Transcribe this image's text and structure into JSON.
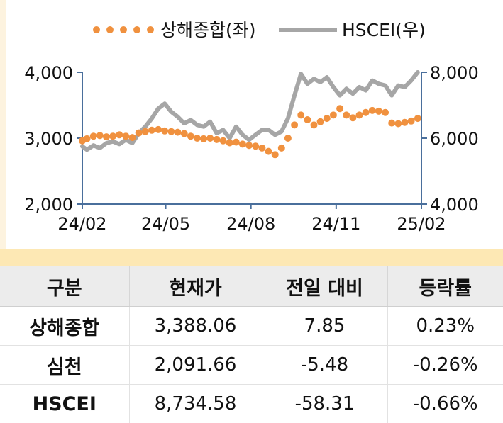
{
  "chart_data": {
    "type": "line",
    "x_tick_labels": [
      "24/02",
      "24/05",
      "24/08",
      "24/11",
      "25/02"
    ],
    "y_left": {
      "ticks": [
        2000,
        3000,
        4000
      ],
      "tick_labels": [
        "2,000",
        "3,000",
        "4,000"
      ],
      "ylim": [
        2000,
        4000
      ]
    },
    "y_right": {
      "ticks": [
        4000,
        6000,
        8000
      ],
      "tick_labels": [
        "4,000",
        "6,000",
        "8,000"
      ],
      "ylim": [
        4000,
        8000
      ]
    },
    "series": [
      {
        "name": "상해종합(좌)",
        "style": "dotted",
        "axis": "left",
        "color": "#f0913f",
        "x": [
          "2024-02-01",
          "2024-02-06",
          "2024-02-13",
          "2024-02-20",
          "2024-02-27",
          "2024-03-05",
          "2024-03-12",
          "2024-03-19",
          "2024-03-26",
          "2024-04-02",
          "2024-04-09",
          "2024-04-16",
          "2024-04-23",
          "2024-04-30",
          "2024-05-07",
          "2024-05-14",
          "2024-05-21",
          "2024-05-28",
          "2024-06-04",
          "2024-06-11",
          "2024-06-18",
          "2024-06-25",
          "2024-07-02",
          "2024-07-09",
          "2024-07-16",
          "2024-07-23",
          "2024-07-30",
          "2024-08-06",
          "2024-08-13",
          "2024-08-20",
          "2024-08-27",
          "2024-09-03",
          "2024-09-10",
          "2024-09-17",
          "2024-09-24",
          "2024-10-01",
          "2024-10-08",
          "2024-10-15",
          "2024-10-22",
          "2024-10-29",
          "2024-11-05",
          "2024-11-12",
          "2024-11-19",
          "2024-11-26",
          "2024-12-03",
          "2024-12-10",
          "2024-12-17",
          "2024-12-24",
          "2024-12-31",
          "2025-01-07",
          "2025-01-14",
          "2025-01-21",
          "2025-01-28"
        ],
        "values": [
          2960,
          2990,
          3030,
          3040,
          3020,
          3030,
          3050,
          3030,
          3010,
          3080,
          3100,
          3120,
          3130,
          3110,
          3100,
          3090,
          3070,
          3030,
          3000,
          2990,
          3000,
          2980,
          2960,
          2930,
          2940,
          2910,
          2890,
          2880,
          2850,
          2800,
          2750,
          2850,
          3000,
          3200,
          3350,
          3280,
          3200,
          3250,
          3300,
          3350,
          3450,
          3350,
          3310,
          3350,
          3390,
          3420,
          3410,
          3390,
          3230,
          3220,
          3240,
          3260,
          3300
        ]
      },
      {
        "name": "HSCEI(우)",
        "style": "solid",
        "axis": "right",
        "color": "#a6a6a6",
        "x": [
          "2024-02-01",
          "2024-02-06",
          "2024-02-13",
          "2024-02-20",
          "2024-02-27",
          "2024-03-05",
          "2024-03-12",
          "2024-03-19",
          "2024-03-26",
          "2024-04-02",
          "2024-04-09",
          "2024-04-16",
          "2024-04-23",
          "2024-04-30",
          "2024-05-07",
          "2024-05-14",
          "2024-05-21",
          "2024-05-28",
          "2024-06-04",
          "2024-06-11",
          "2024-06-18",
          "2024-06-25",
          "2024-07-02",
          "2024-07-09",
          "2024-07-16",
          "2024-07-23",
          "2024-07-30",
          "2024-08-06",
          "2024-08-13",
          "2024-08-20",
          "2024-08-27",
          "2024-09-03",
          "2024-09-10",
          "2024-09-17",
          "2024-09-24",
          "2024-10-01",
          "2024-10-08",
          "2024-10-15",
          "2024-10-22",
          "2024-10-29",
          "2024-11-05",
          "2024-11-12",
          "2024-11-19",
          "2024-11-26",
          "2024-12-03",
          "2024-12-10",
          "2024-12-17",
          "2024-12-24",
          "2024-12-31",
          "2025-01-07",
          "2025-01-14",
          "2025-01-21",
          "2025-01-28"
        ],
        "values": [
          5750,
          5650,
          5780,
          5700,
          5850,
          5900,
          5820,
          5950,
          5850,
          6150,
          6350,
          6600,
          6900,
          7050,
          6800,
          6650,
          6450,
          6550,
          6400,
          6350,
          6500,
          6150,
          6250,
          6000,
          6350,
          6100,
          5950,
          6100,
          6250,
          6250,
          6100,
          6200,
          6600,
          7300,
          7950,
          7650,
          7800,
          7700,
          7850,
          7550,
          7300,
          7500,
          7350,
          7550,
          7450,
          7750,
          7650,
          7600,
          7300,
          7600,
          7550,
          7750,
          8000
        ]
      }
    ],
    "legend": "top-center"
  },
  "table": {
    "headers": [
      "구분",
      "현재가",
      "전일 대비",
      "등락률"
    ],
    "rows": [
      [
        "상해종합",
        "3,388.06",
        "7.85",
        "0.23%"
      ],
      [
        "심천",
        "2,091.66",
        "-5.48",
        "-0.26%"
      ],
      [
        "HSCEI",
        "8,734.58",
        "-58.31",
        "-0.66%"
      ]
    ]
  }
}
